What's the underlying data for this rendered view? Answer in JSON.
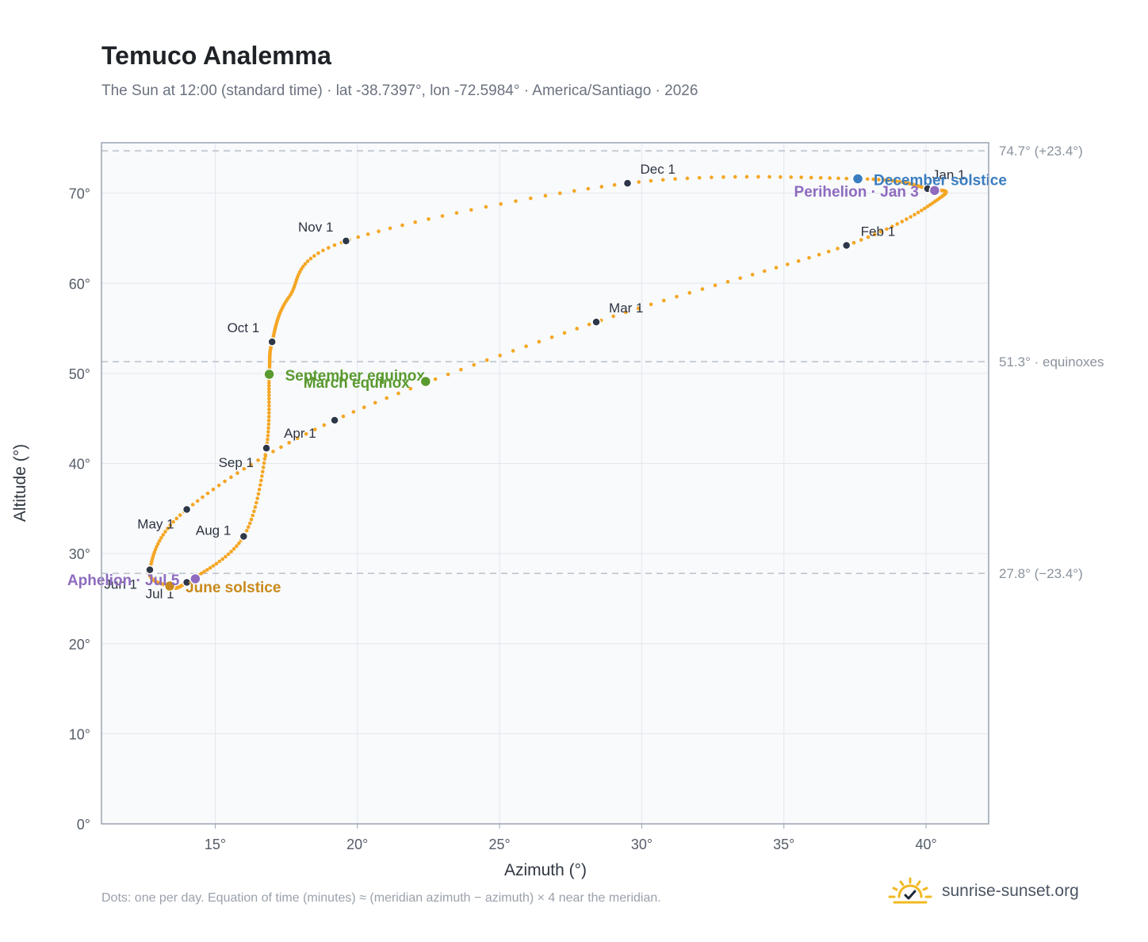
{
  "header": {
    "title": "Temuco Analemma",
    "subtitle": "The Sun at 12:00 (standard time) · lat -38.7397°, lon -72.5984° · America/Santiago · 2026"
  },
  "footer": {
    "note": "Dots: one per day. Equation of time (minutes) ≈ (meridian azimuth − azimuth) × 4 near the meridian.",
    "brand": "sunrise-sunset.org",
    "brand_icon": "sun-icon"
  },
  "colors": {
    "curve": "#f5a623",
    "month_marker": "#2d3748",
    "equinox": "#5a9a2f",
    "december_solstice": "#3a7dc0",
    "june_solstice": "#c98a1c",
    "apsis": "#8e6bbf",
    "reference_line": "#b8c0ca",
    "plot_background": "#f8fafc",
    "grid": "#e3e8ee",
    "axis_frame": "#9aa4b2"
  },
  "chart_data": {
    "type": "scatter",
    "title": "Temuco Analemma",
    "subtitle": "The Sun at 12:00 (standard time) · lat -38.7397°, lon -72.5984° · America/Santiago · 2026",
    "xlabel": "Azimuth (°)",
    "ylabel": "Altitude (°)",
    "xlim": [
      11,
      42.2
    ],
    "ylim": [
      0,
      75.6
    ],
    "x_ticks": [
      15,
      20,
      25,
      30,
      35,
      40
    ],
    "x_tick_labels": [
      "15°",
      "20°",
      "25°",
      "30°",
      "35°",
      "40°"
    ],
    "y_ticks": [
      0,
      10,
      20,
      30,
      40,
      50,
      60,
      70
    ],
    "y_tick_labels": [
      "0°",
      "10°",
      "20°",
      "30°",
      "40°",
      "50°",
      "60°",
      "70°"
    ],
    "grid": true,
    "reference_lines": [
      {
        "y": 74.7,
        "label": "74.7° (+23.4°)"
      },
      {
        "y": 51.3,
        "label": "51.3° · equinoxes"
      },
      {
        "y": 27.8,
        "label": "27.8° (−23.4°)"
      }
    ],
    "series": [
      {
        "values": [
          {
            "x": 40.05,
            "y": 70.5
          },
          {
            "x": 40.5,
            "y": 69.5
          },
          {
            "x": 37.2,
            "y": 64.2
          },
          {
            "x": 28.4,
            "y": 55.7
          },
          {
            "x": 19.2,
            "y": 44.8
          },
          {
            "x": 14.0,
            "y": 34.9
          },
          {
            "x": 12.7,
            "y": 28.2
          },
          {
            "x": 13.4,
            "y": 26.4
          },
          {
            "x": 14.0,
            "y": 26.8
          },
          {
            "x": 16.0,
            "y": 31.9
          },
          {
            "x": 16.8,
            "y": 41.7
          },
          {
            "x": 16.9,
            "y": 49.9
          },
          {
            "x": 17.0,
            "y": 53.5
          },
          {
            "x": 17.6,
            "y": 58.5
          },
          {
            "x": 19.6,
            "y": 64.7
          },
          {
            "x": 29.5,
            "y": 71.1
          },
          {
            "x": 37.6,
            "y": 71.6
          },
          {
            "x": 40.05,
            "y": 70.5
          }
        ]
      }
    ],
    "month_markers": [
      {
        "label": "Jan 1",
        "x": 40.05,
        "y": 70.5
      },
      {
        "label": "Feb 1",
        "x": 37.2,
        "y": 64.2
      },
      {
        "label": "Mar 1",
        "x": 28.4,
        "y": 55.7
      },
      {
        "label": "Apr 1",
        "x": 19.2,
        "y": 44.8
      },
      {
        "label": "May 1",
        "x": 14.0,
        "y": 34.9
      },
      {
        "label": "Jun 1",
        "x": 12.7,
        "y": 28.2
      },
      {
        "label": "Jul 1",
        "x": 14.0,
        "y": 26.8
      },
      {
        "label": "Aug 1",
        "x": 16.0,
        "y": 31.9
      },
      {
        "label": "Sep 1",
        "x": 16.8,
        "y": 41.7
      },
      {
        "label": "Oct 1",
        "x": 17.0,
        "y": 53.5
      },
      {
        "label": "Nov 1",
        "x": 19.6,
        "y": 64.7
      },
      {
        "label": "Dec 1",
        "x": 29.5,
        "y": 71.1
      }
    ],
    "events": [
      {
        "label": "December solstice",
        "x": 37.6,
        "y": 71.6,
        "kind": "december_solstice"
      },
      {
        "label": "Perihelion · Jan 3",
        "x": 40.3,
        "y": 70.3,
        "kind": "apsis"
      },
      {
        "label": "September equinox",
        "x": 16.9,
        "y": 49.9,
        "kind": "equinox"
      },
      {
        "label": "March equinox",
        "x": 22.4,
        "y": 49.1,
        "kind": "equinox"
      },
      {
        "label": "June solstice",
        "x": 13.4,
        "y": 26.4,
        "kind": "june_solstice"
      },
      {
        "label": "Aphelion · Jul 5",
        "x": 14.3,
        "y": 27.2,
        "kind": "apsis"
      }
    ]
  }
}
